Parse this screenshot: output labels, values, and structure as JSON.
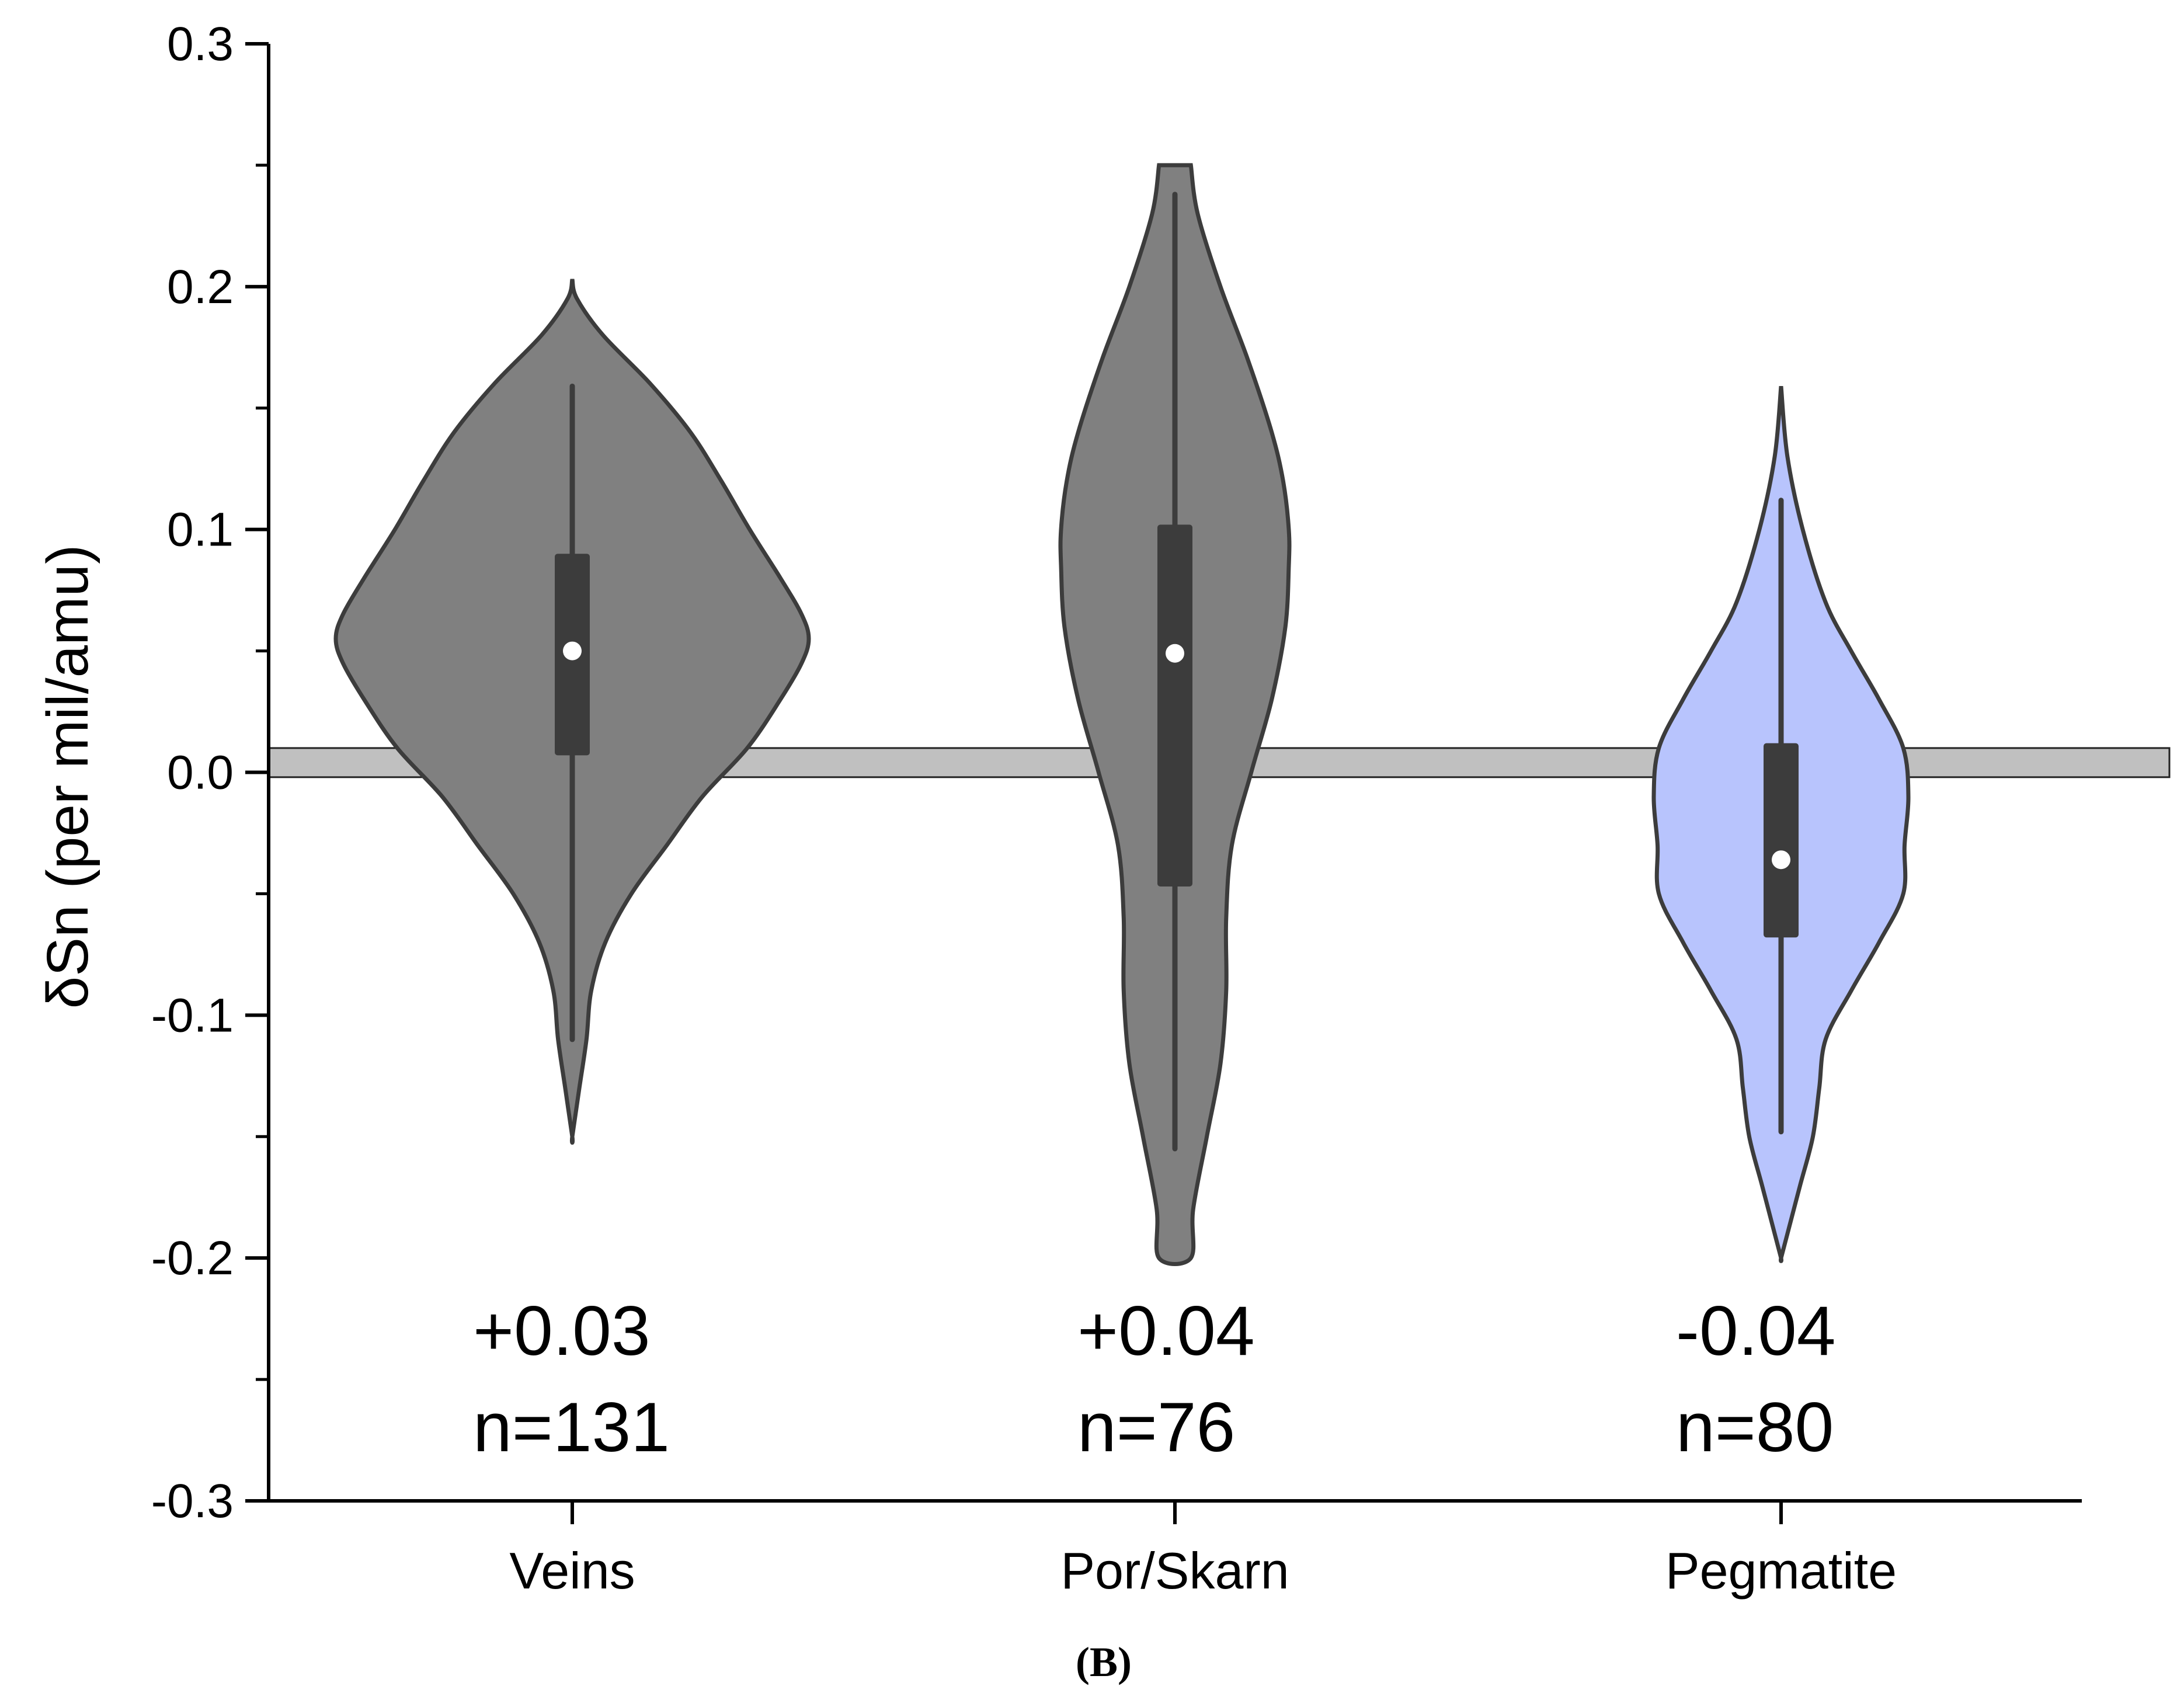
{
  "chart_data": {
    "type": "violin",
    "ylabel": "δSn (per mil/amu)",
    "xlabel": "",
    "ylim": [
      -0.3,
      0.3
    ],
    "yticks": [
      "0.3",
      "0.2",
      "0.1",
      "0.0",
      "-0.1",
      "-0.2",
      "-0.3"
    ],
    "ytick_values": [
      0.3,
      0.2,
      0.1,
      0.0,
      -0.1,
      -0.2,
      -0.3
    ],
    "reference_band": {
      "ymin": -0.002,
      "ymax": 0.01,
      "color": "#c0c0c0"
    },
    "panel_label": "(B)",
    "categories": [
      "Veins",
      "Por/Skarn",
      "Pegmatite"
    ],
    "groups": [
      {
        "name": "Veins",
        "fill": "#808080",
        "min": -0.15,
        "max": 0.203,
        "whisker_low": -0.11,
        "whisker_high": 0.159,
        "q1": 0.007,
        "q3": 0.09,
        "median": 0.05,
        "mean_label": "+0.03",
        "n_label": "n=131",
        "density_y": [
          0.203,
          0.195,
          0.18,
          0.16,
          0.14,
          0.12,
          0.1,
          0.08,
          0.065,
          0.055,
          0.045,
          0.03,
          0.01,
          -0.01,
          -0.03,
          -0.05,
          -0.07,
          -0.09,
          -0.11,
          -0.13,
          -0.15
        ],
        "density_w": [
          0.0,
          0.02,
          0.13,
          0.33,
          0.5,
          0.63,
          0.75,
          0.88,
          0.97,
          1.0,
          0.97,
          0.88,
          0.74,
          0.55,
          0.4,
          0.25,
          0.14,
          0.08,
          0.06,
          0.03,
          0.0
        ]
      },
      {
        "name": "Por/Skarn",
        "fill": "#808080",
        "min": -0.2,
        "max": 0.25,
        "whisker_low": -0.155,
        "whisker_high": 0.238,
        "q1": -0.047,
        "q3": 0.102,
        "median": 0.049,
        "mean_label": "+0.04",
        "n_label": "n=76",
        "density_y": [
          0.25,
          0.23,
          0.2,
          0.17,
          0.14,
          0.12,
          0.1,
          0.085,
          0.06,
          0.03,
          0.0,
          -0.03,
          -0.06,
          -0.09,
          -0.12,
          -0.15,
          -0.18,
          -0.2
        ],
        "density_w": [
          0.14,
          0.2,
          0.4,
          0.64,
          0.85,
          0.95,
          1.0,
          1.0,
          0.97,
          0.85,
          0.67,
          0.5,
          0.45,
          0.45,
          0.4,
          0.28,
          0.16,
          0.14
        ]
      },
      {
        "name": "Pegmatite",
        "fill": "#b8c4fd",
        "min": -0.2,
        "max": 0.159,
        "whisker_low": -0.148,
        "whisker_high": 0.112,
        "q1": -0.068,
        "q3": 0.012,
        "median": -0.036,
        "mean_label": "-0.04",
        "n_label": "n=80",
        "density_y": [
          0.159,
          0.13,
          0.1,
          0.07,
          0.05,
          0.03,
          0.01,
          -0.01,
          -0.03,
          -0.05,
          -0.07,
          -0.09,
          -0.11,
          -0.13,
          -0.15,
          -0.17,
          -0.19,
          -0.2
        ],
        "density_w": [
          0.0,
          0.05,
          0.17,
          0.35,
          0.55,
          0.77,
          0.96,
          1.0,
          0.97,
          0.96,
          0.77,
          0.55,
          0.35,
          0.3,
          0.25,
          0.15,
          0.05,
          0.0
        ]
      }
    ]
  }
}
